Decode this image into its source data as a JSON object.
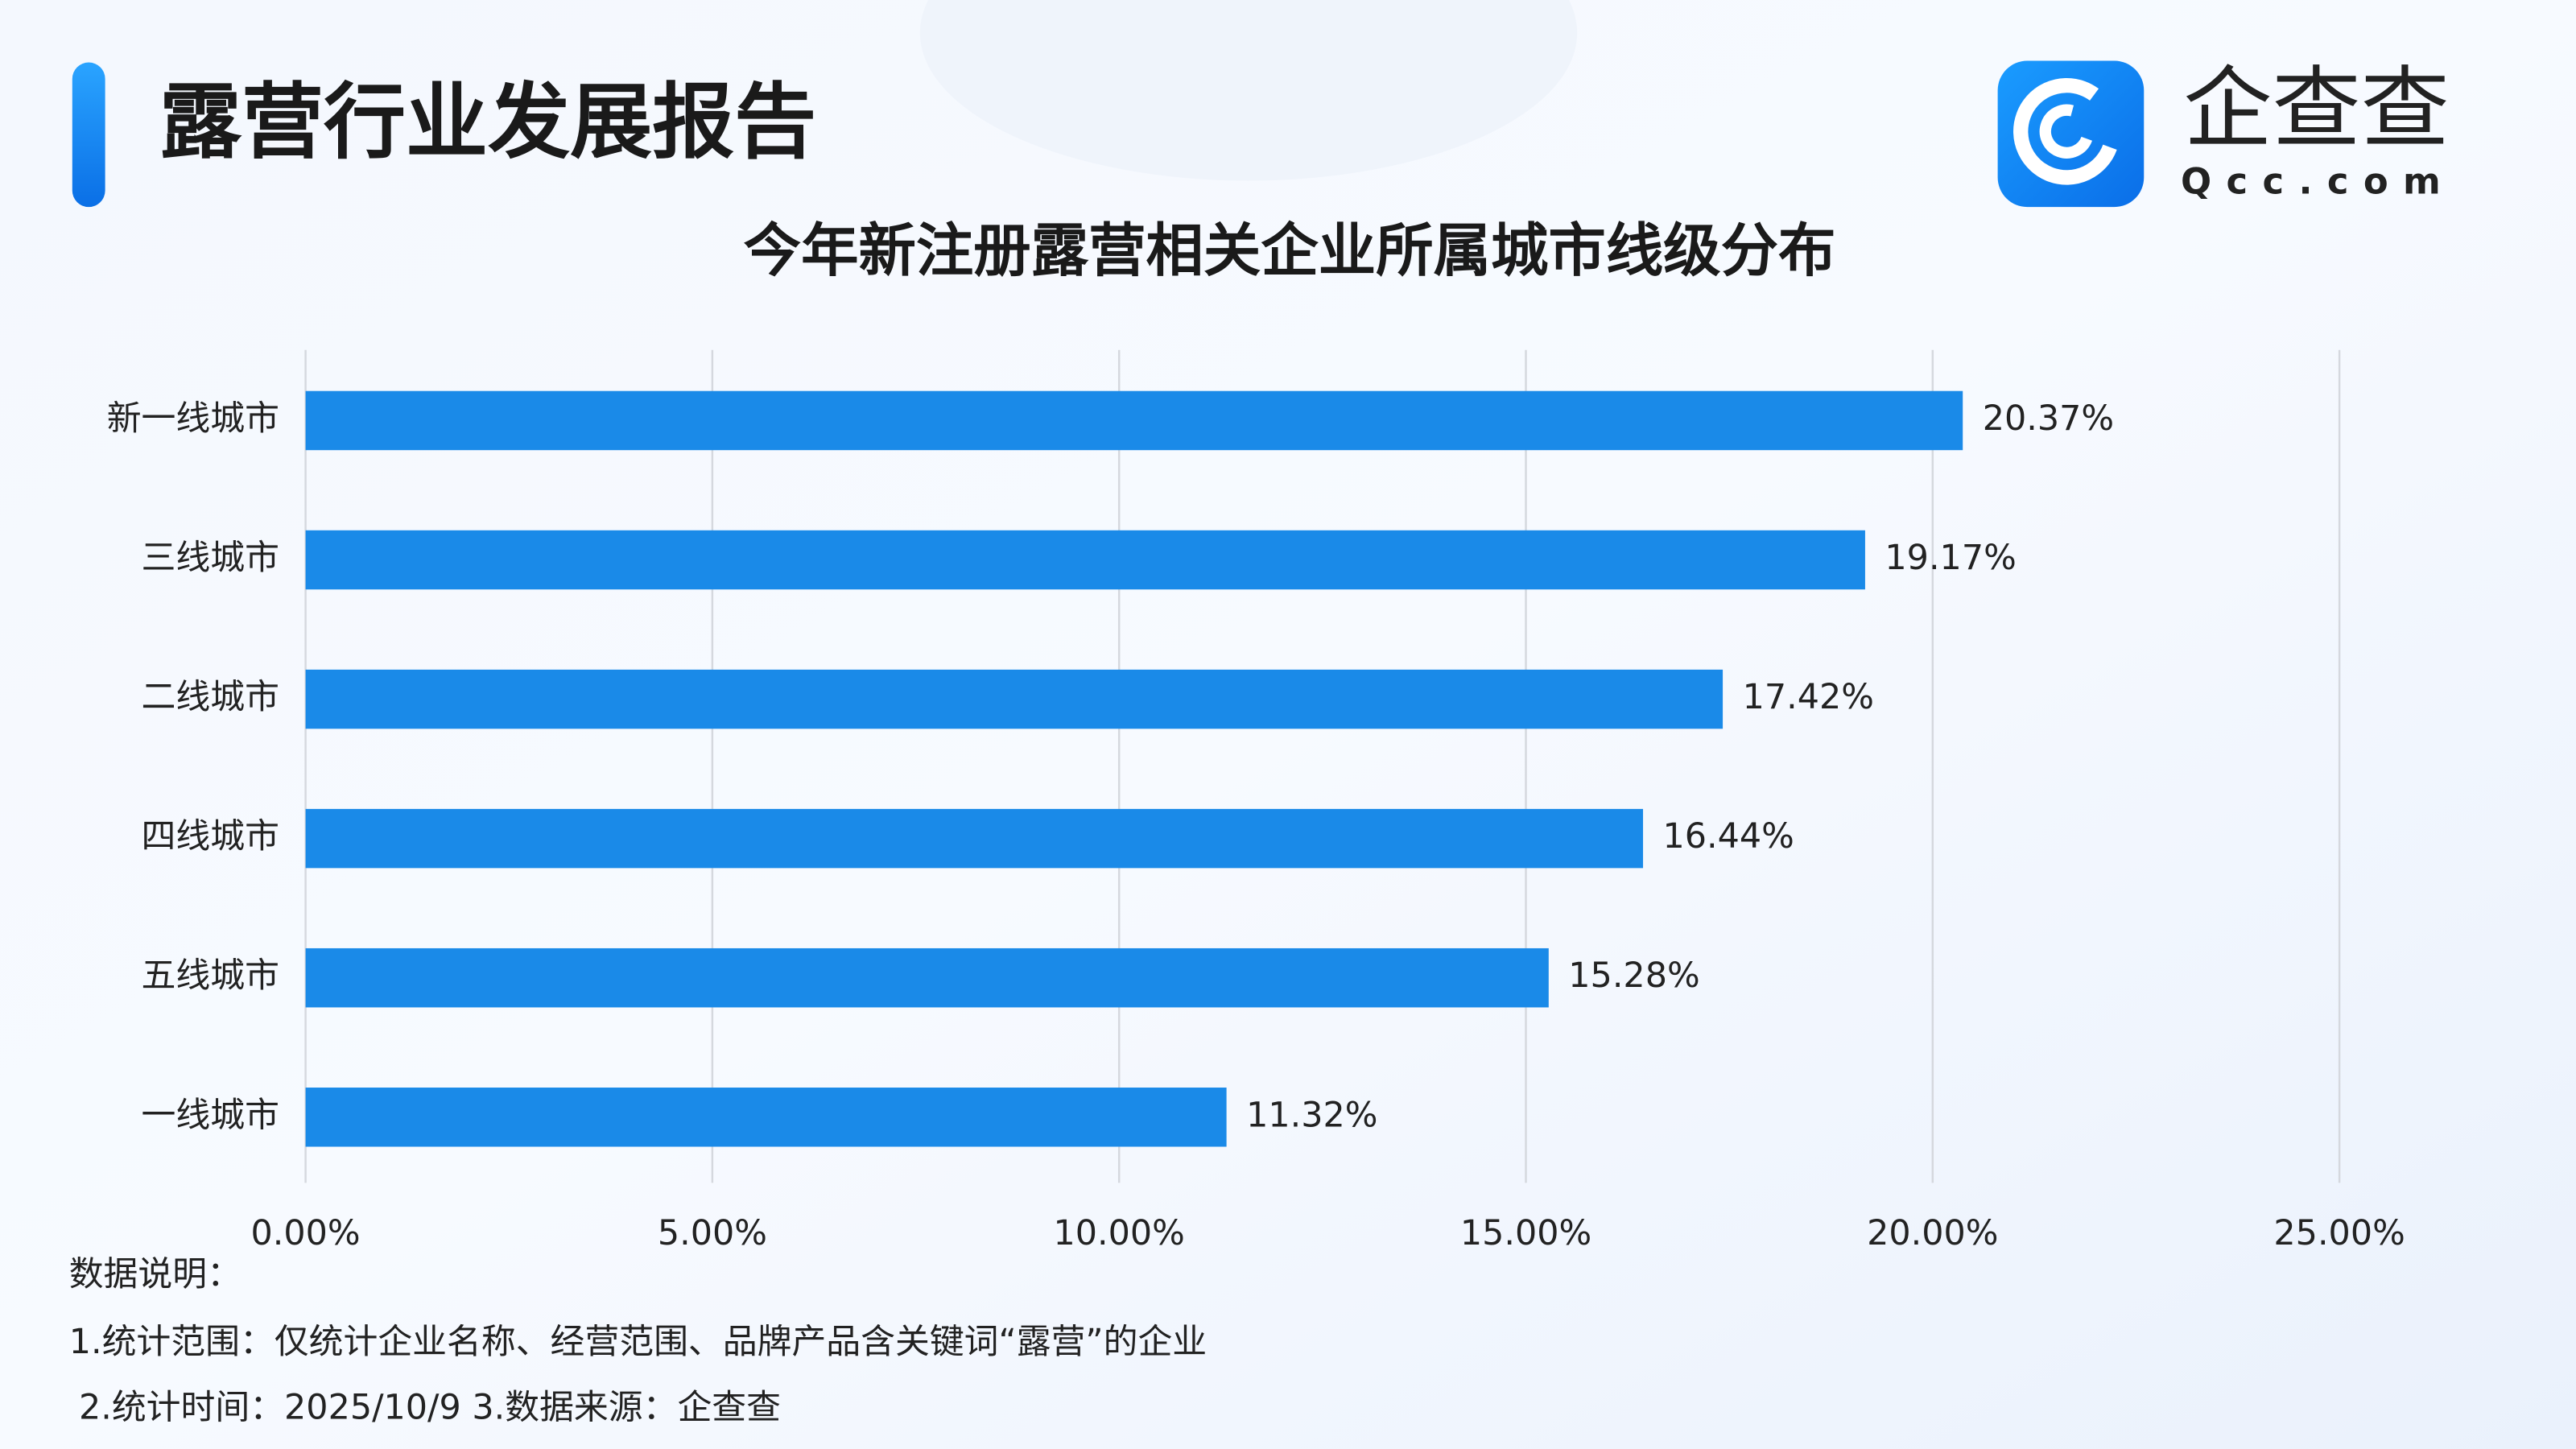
{
  "header": {
    "title": "露营行业发展报告",
    "logo_name": "企查查",
    "logo_domain": "Qcc.com"
  },
  "chart_data": {
    "type": "bar",
    "orientation": "horizontal",
    "title": "今年新注册露营相关企业所属城市线级分布",
    "categories": [
      "新一线城市",
      "三线城市",
      "二线城市",
      "四线城市",
      "五线城市",
      "一线城市"
    ],
    "values": [
      20.37,
      19.17,
      17.42,
      16.44,
      15.28,
      11.32
    ],
    "value_labels": [
      "20.37%",
      "19.17%",
      "17.42%",
      "16.44%",
      "15.28%",
      "11.32%"
    ],
    "color": "#1a8ae8",
    "xlim": [
      0,
      25
    ],
    "xticks": [
      {
        "value": 0,
        "label": "0.00%"
      },
      {
        "value": 5,
        "label": "5.00%"
      },
      {
        "value": 10,
        "label": "10.00%"
      },
      {
        "value": 15,
        "label": "15.00%"
      },
      {
        "value": 20,
        "label": "20.00%"
      },
      {
        "value": 25,
        "label": "25.00%"
      }
    ],
    "grid": true
  },
  "notes": [
    "数据说明：",
    "1.统计范围：仅统计企业名称、经营范围、品牌产品含关键词“露营”的企业",
    "2.统计时间：2025/10/9 3.数据来源：企查查"
  ]
}
